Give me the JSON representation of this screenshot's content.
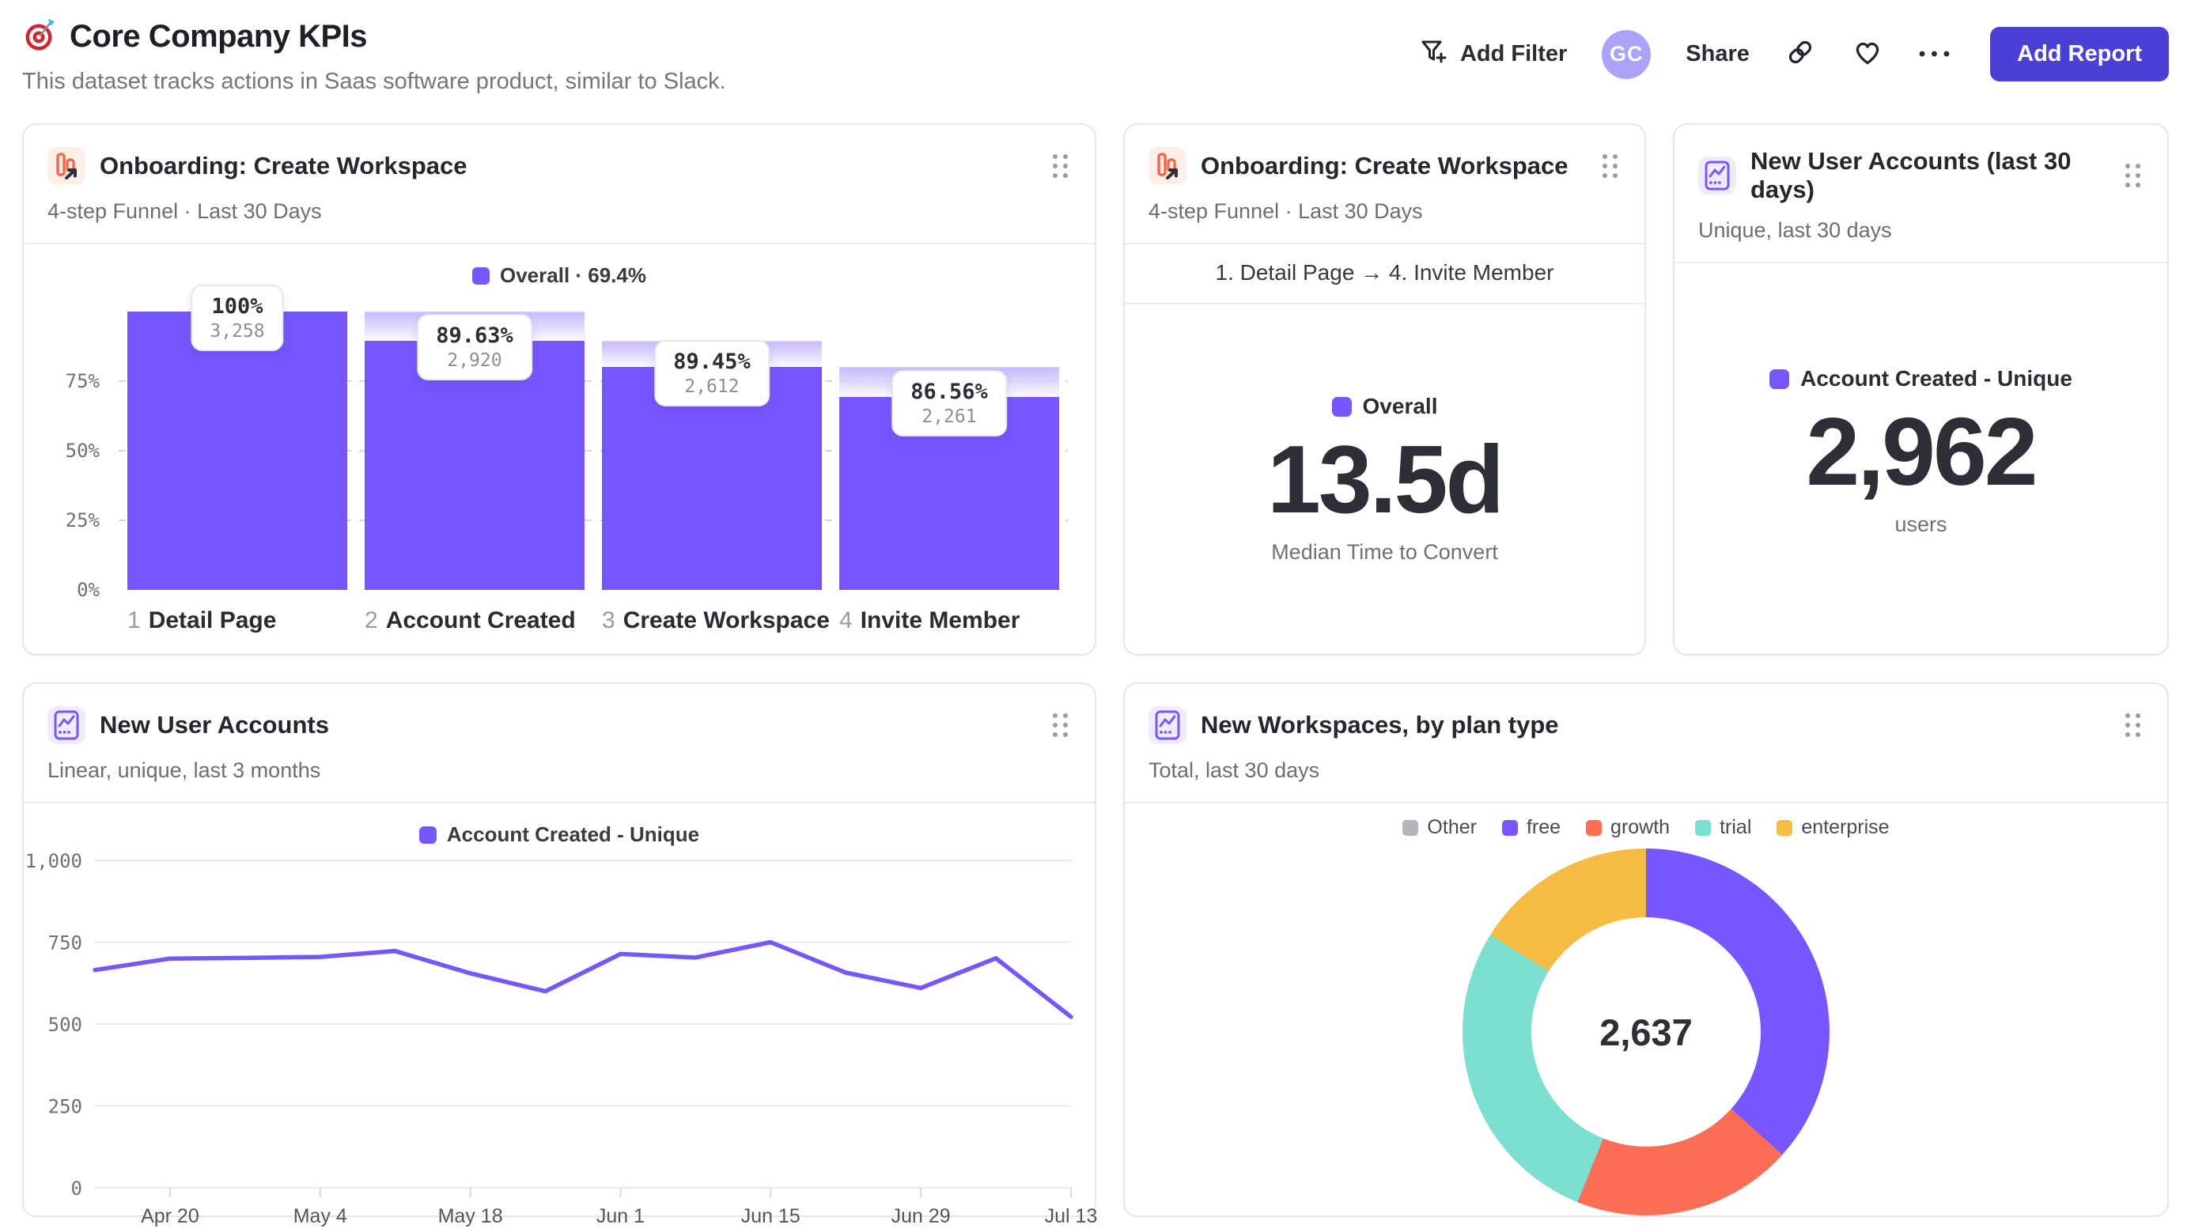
{
  "header": {
    "title": "Core Company KPIs",
    "subtitle": "This dataset tracks actions in Saas software product, similar to Slack.",
    "toolbar": {
      "add_filter": "Add Filter",
      "avatar_initials": "GC",
      "share": "Share",
      "more": "•••",
      "add_report": "Add Report"
    }
  },
  "colors": {
    "accent_purple": "#7856FF",
    "coral": "#FB6E55",
    "teal": "#7BDFD2",
    "amber": "#F6BB42",
    "gray": "#B4B4BC",
    "primary_button": "#4B3FD6",
    "avatar_bg": "#ABA3F8"
  },
  "cards": {
    "funnel": {
      "title": "Onboarding: Create Workspace",
      "subtitle": "4-step Funnel · Last 30 Days",
      "legend_label": "Overall · 69.4%",
      "chart_data": {
        "type": "bar",
        "subtype": "funnel",
        "series_name": "Overall",
        "overall_conversion": "69.4%",
        "yticks": [
          0,
          25,
          50,
          75
        ],
        "ytick_suffix": "%",
        "steps": [
          {
            "num": "1",
            "label": "Detail Page",
            "pct_label": "100%",
            "count_label": "3,258",
            "count": 3258,
            "pct_of_first": 100
          },
          {
            "num": "2",
            "label": "Account Created",
            "pct_label": "89.63%",
            "count_label": "2,920",
            "count": 2920,
            "pct_of_first": 89.63
          },
          {
            "num": "3",
            "label": "Create Workspace",
            "pct_label": "89.45%",
            "count_label": "2,612",
            "count": 2612,
            "pct_of_first": 80.17
          },
          {
            "num": "4",
            "label": "Invite Member",
            "pct_label": "86.56%",
            "count_label": "2,261",
            "count": 2261,
            "pct_of_first": 69.4
          }
        ]
      }
    },
    "median_time": {
      "title": "Onboarding: Create Workspace",
      "subtitle": "4-step Funnel · Last 30 Days",
      "step_range": "1. Detail Page → 4. Invite Member",
      "legend_label": "Overall",
      "value": "13.5d",
      "caption": "Median Time to Convert"
    },
    "new_users_total": {
      "title": "New User Accounts (last 30 days)",
      "subtitle": "Unique, last 30 days",
      "legend_label": "Account Created - Unique",
      "value": "2,962",
      "caption": "users"
    },
    "new_users_trend": {
      "title": "New User Accounts",
      "subtitle": "Linear, unique, last 3 months",
      "legend_label": "Account Created - Unique",
      "chart_data": {
        "type": "line",
        "title": "New User Accounts",
        "legend": [
          "Account Created - Unique"
        ],
        "x_interval": "weekly",
        "x_tick_labels": [
          "Apr 20",
          "May 4",
          "May 18",
          "Jun 1",
          "Jun 15",
          "Jun 29",
          "Jul 13"
        ],
        "x_tick_indices": [
          1,
          3,
          5,
          7,
          9,
          11,
          13
        ],
        "ylim": [
          0,
          1000
        ],
        "yticks": [
          {
            "v": 0,
            "label": "0"
          },
          {
            "v": 250,
            "label": "250"
          },
          {
            "v": 500,
            "label": "500"
          },
          {
            "v": 750,
            "label": "750"
          },
          {
            "v": 1000,
            "label": "1,000"
          }
        ],
        "series": [
          {
            "name": "Account Created - Unique",
            "color": "#7856FF",
            "values": [
              665,
              700,
              702,
              705,
              723,
              655,
              600,
              714,
              703,
              750,
              657,
              610,
              701,
              522
            ]
          }
        ]
      }
    },
    "workspaces_by_plan": {
      "title": "New Workspaces, by plan type",
      "subtitle": "Total, last 30 days",
      "chart_data": {
        "type": "pie",
        "subtype": "donut",
        "center_label": "2,637",
        "total": 2637,
        "legend_position": "top",
        "segments": [
          {
            "label": "Other",
            "value": 0,
            "color": "#B4B4BC"
          },
          {
            "label": "free",
            "value": 967,
            "color": "#7856FF"
          },
          {
            "label": "growth",
            "value": 512,
            "color": "#FB6E55"
          },
          {
            "label": "trial",
            "value": 733,
            "color": "#7BDFD2"
          },
          {
            "label": "enterprise",
            "value": 425,
            "color": "#F6BB42"
          }
        ]
      }
    }
  }
}
